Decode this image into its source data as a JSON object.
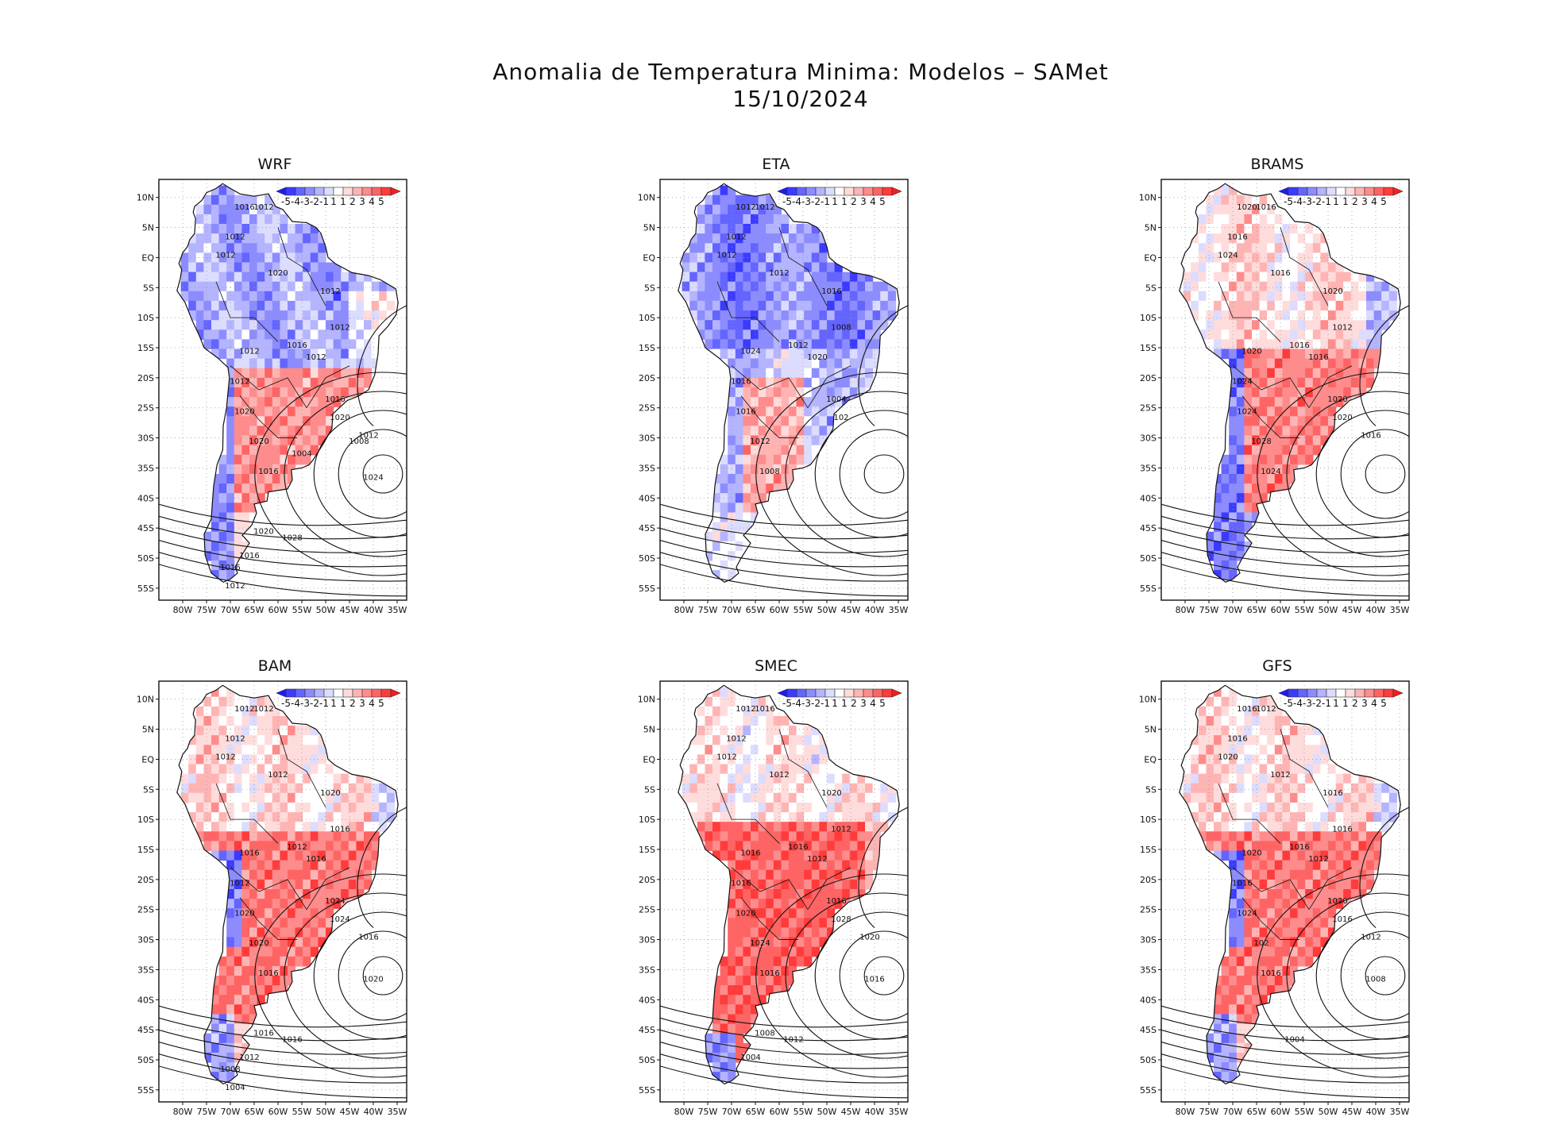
{
  "figure": {
    "title_line1": "Anomalia de Temperatura Minima: Modelos – SAMet",
    "title_line2": "15/10/2024"
  },
  "axes": {
    "lat_labels": [
      "10N",
      "5N",
      "EQ",
      "5S",
      "10S",
      "15S",
      "20S",
      "25S",
      "30S",
      "35S",
      "40S",
      "45S",
      "50S",
      "55S"
    ],
    "lon_labels": [
      "80W",
      "75W",
      "70W",
      "65W",
      "60W",
      "55W",
      "50W",
      "45W",
      "40W",
      "35W"
    ]
  },
  "colorbar": {
    "labels": [
      "-5",
      "-4",
      "-3",
      "-2",
      "-1",
      "1",
      "1",
      "2",
      "3",
      "4",
      "5"
    ],
    "colors": [
      "#1a1aff",
      "#3b3bff",
      "#6464ff",
      "#8c8cff",
      "#b4b4ff",
      "#dcdcff",
      "#ffffff",
      "#ffdcdc",
      "#ffb4b4",
      "#ff8c8c",
      "#ff6464",
      "#ff3b3b",
      "#ff1a1a"
    ]
  },
  "panels": [
    {
      "title": "WRF",
      "anomaly": "cold-north-warm-south",
      "isobars": [
        "1016",
        "1012",
        "1012",
        "1012",
        "1020",
        "1012",
        "1012",
        "1012",
        "1016",
        "1012",
        "1012",
        "1020",
        "1020",
        "1016",
        "1016",
        "1020",
        "1012",
        "1024",
        "1028",
        "1020",
        "1016",
        "1016",
        "1012",
        "1008",
        "1004"
      ]
    },
    {
      "title": "ETA",
      "anomaly": "cold",
      "isobars": [
        "1012",
        "1012",
        "1012",
        "1012",
        "1012",
        "1016",
        "1008",
        "1020",
        "1012",
        "1024",
        "1016",
        "1016",
        "1012",
        "1008",
        "1004",
        "102"
      ]
    },
    {
      "title": "BRAMS",
      "anomaly": "warm-center",
      "isobars": [
        "1020",
        "1016",
        "1016",
        "1024",
        "1016",
        "1020",
        "1012",
        "1016",
        "1016",
        "1020",
        "1024",
        "1024",
        "1028",
        "1024",
        "1020",
        "1020",
        "1016"
      ]
    },
    {
      "title": "BAM",
      "anomaly": "warm",
      "isobars": [
        "1012",
        "1012",
        "1012",
        "1012",
        "1012",
        "1020",
        "1016",
        "1016",
        "1012",
        "1016",
        "1012",
        "1020",
        "1020",
        "1016",
        "1024",
        "1024",
        "1016",
        "1020",
        "1016",
        "1016",
        "1012",
        "1008",
        "1004"
      ]
    },
    {
      "title": "SMEC",
      "anomaly": "warm-strong",
      "isobars": [
        "1012",
        "1016",
        "1012",
        "1012",
        "1012",
        "1020",
        "1012",
        "1012",
        "1016",
        "1016",
        "1016",
        "1020",
        "1024",
        "1016",
        "1016",
        "1028",
        "1020",
        "1016",
        "1012",
        "1008",
        "1004"
      ]
    },
    {
      "title": "GFS",
      "anomaly": "warm",
      "isobars": [
        "1016",
        "1012",
        "1016",
        "1020",
        "1012",
        "1016",
        "1016",
        "1012",
        "1016",
        "1020",
        "1016",
        "1024",
        "102",
        "1016",
        "1020",
        "1016",
        "1012",
        "1008",
        "1004"
      ]
    }
  ]
}
